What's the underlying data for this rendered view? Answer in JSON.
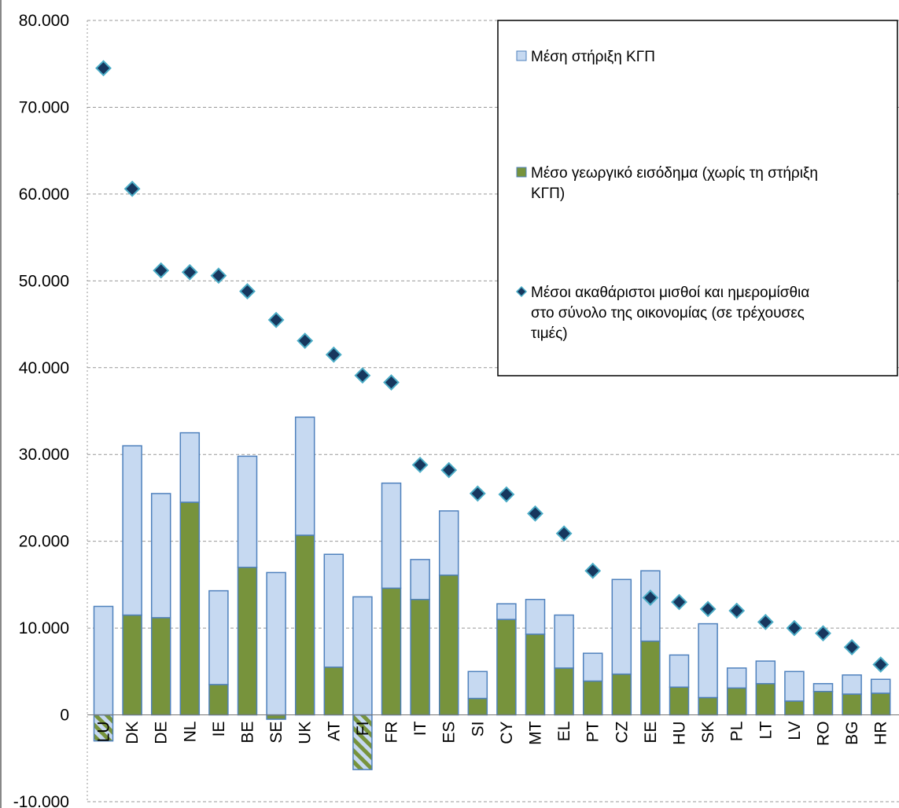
{
  "chart_data": {
    "type": "bar",
    "stacked": true,
    "categories": [
      "LU",
      "DK",
      "DE",
      "NL",
      "IE",
      "BE",
      "SE",
      "UK",
      "AT",
      "FI",
      "FR",
      "IT",
      "ES",
      "SI",
      "CY",
      "MT",
      "EL",
      "PT",
      "CZ",
      "EE",
      "HU",
      "SK",
      "PL",
      "LT",
      "LV",
      "RO",
      "BG",
      "HR"
    ],
    "series": [
      {
        "name": "Μέση στήριξη ΚΓΠ",
        "kind": "bar",
        "color": "#c6d9f1",
        "values": [
          12500,
          19500,
          14300,
          8000,
          10800,
          12800,
          16400,
          13600,
          13000,
          13600,
          12100,
          4600,
          7400,
          3100,
          1800,
          4000,
          6100,
          3200,
          10900,
          8100,
          3700,
          8500,
          2300,
          2600,
          3400,
          900,
          2200,
          1600
        ]
      },
      {
        "name": "Μέσο γεωργικό εισόδημα (χωρίς τη στήριξη ΚΓΠ)",
        "kind": "bar",
        "color": "#77933c",
        "values": [
          -3000,
          11500,
          11200,
          24500,
          3500,
          17000,
          -500,
          20700,
          5500,
          -6300,
          14600,
          13300,
          16100,
          1900,
          11000,
          9300,
          5400,
          3900,
          4700,
          8500,
          3200,
          2000,
          3100,
          3600,
          1600,
          2700,
          2400,
          2500
        ]
      },
      {
        "name": "Μέσοι ακαθάριστοι μισθοί και ημερομίσθια στο σύνολο της οικονομίας (σε τρέχουσες τιμές)",
        "kind": "scatter",
        "color": "#17375e",
        "values": [
          74500,
          60600,
          51200,
          51000,
          50600,
          48800,
          45500,
          43100,
          41500,
          39100,
          38300,
          28800,
          28200,
          25500,
          25400,
          23200,
          20900,
          16600,
          null,
          13500,
          13000,
          12200,
          12000,
          10700,
          10000,
          9400,
          7800,
          5800
        ]
      }
    ],
    "ylim": [
      -10000,
      80000
    ],
    "yticks": [
      -10000,
      0,
      10000,
      20000,
      30000,
      40000,
      50000,
      60000,
      70000,
      80000
    ],
    "ytick_labels": [
      "-10.000",
      "0",
      "10.000",
      "20.000",
      "30.000",
      "40.000",
      "50.000",
      "60.000",
      "70.000",
      "80.000"
    ],
    "hatched_negative_categories": [
      "LU",
      "FI"
    ],
    "grid": "horizontal dashed",
    "legend_position": "top-right",
    "legend_entries": [
      [
        "Μέση στήριξη ΚΓΠ"
      ],
      [
        "Μέσο γεωργικό εισόδημα (χωρίς τη στήριξη",
        "ΚΓΠ)"
      ],
      [
        "Μέσοι ακαθάριστοι μισθοί και ημερομίσθια",
        "στο σύνολο της οικονομίας (σε τρέχουσες",
        "τιμές)"
      ]
    ],
    "title": "",
    "xlabel": "",
    "ylabel": ""
  }
}
